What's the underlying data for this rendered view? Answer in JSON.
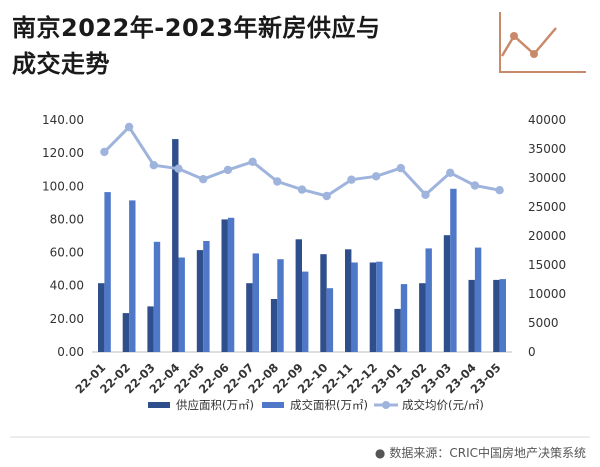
{
  "header": {
    "title_line1": "南京2022年-2023年新房供应与",
    "title_line2": "成交走势"
  },
  "source": {
    "text": "数据来源：CRIC中国房地产决策系统"
  },
  "colors": {
    "supply": "#2f4e8c",
    "deal": "#4f78c8",
    "price": "#9fb4dc",
    "deco": "#c98a6b"
  },
  "chart_data": {
    "type": "bar",
    "categories": [
      "22-01",
      "22-02",
      "22-03",
      "22-04",
      "22-05",
      "22-06",
      "22-07",
      "22-08",
      "22-09",
      "22-10",
      "22-11",
      "22-12",
      "23-01",
      "23-02",
      "23-03",
      "23-04",
      "23-05"
    ],
    "series": [
      {
        "name": "供应面积(万㎡)",
        "type": "bar",
        "axis": "left",
        "values": [
          41.5,
          23.5,
          27.5,
          128.5,
          61.5,
          80.0,
          41.5,
          32.0,
          68.0,
          59.0,
          62.0,
          54.0,
          26.0,
          41.5,
          70.5,
          43.5,
          43.5
        ]
      },
      {
        "name": "成交面积(万㎡)",
        "type": "bar",
        "axis": "left",
        "values": [
          96.5,
          91.5,
          66.5,
          57.0,
          67.0,
          81.0,
          59.5,
          56.0,
          48.5,
          38.5,
          54.0,
          54.5,
          41.0,
          62.5,
          98.5,
          63.0,
          44.0
        ]
      },
      {
        "name": "成交均价(元/㎡)",
        "type": "line",
        "axis": "right",
        "values": [
          34500,
          38800,
          32200,
          31600,
          29800,
          31400,
          32800,
          29400,
          28000,
          26900,
          29700,
          30300,
          31700,
          27100,
          30900,
          28700,
          27900
        ]
      }
    ],
    "y_left": {
      "min": 0,
      "max": 140,
      "ticks": [
        "0.00",
        "20.00",
        "40.00",
        "60.00",
        "80.00",
        "100.00",
        "120.00",
        "140.00"
      ]
    },
    "y_right": {
      "min": 0,
      "max": 40000,
      "ticks": [
        "0",
        "5000",
        "10000",
        "15000",
        "20000",
        "25000",
        "30000",
        "35000",
        "40000"
      ]
    },
    "legend_position": "bottom",
    "grid": false
  }
}
